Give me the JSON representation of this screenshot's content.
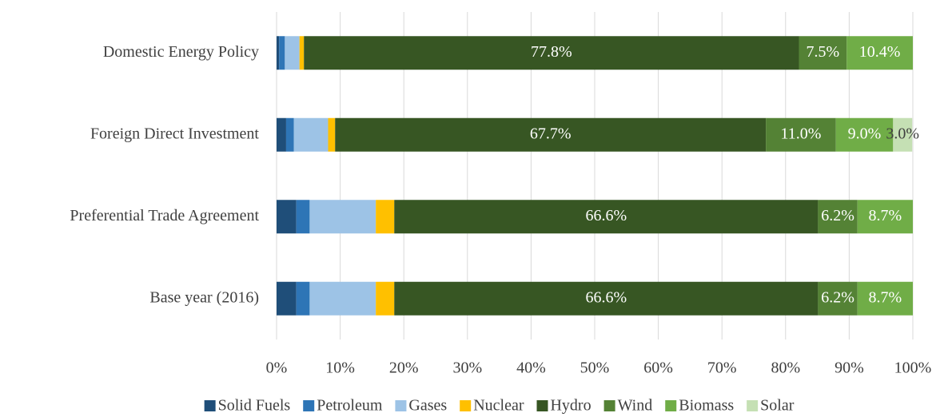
{
  "chart_data": {
    "type": "stacked_bar_horizontal",
    "categories": [
      "Domestic Energy Policy",
      "Foreign Direct Investment",
      "Preferential Trade Agreement",
      "Base year (2016)"
    ],
    "series": [
      {
        "name": "Solid Fuels",
        "color": "#1f4e79",
        "values": [
          0.4,
          1.5,
          3.1,
          3.1
        ]
      },
      {
        "name": "Petroleum",
        "color": "#2e75b6",
        "values": [
          0.9,
          1.2,
          2.1,
          2.1
        ]
      },
      {
        "name": "Gases",
        "color": "#9dc3e6",
        "values": [
          2.3,
          5.4,
          10.4,
          10.4
        ]
      },
      {
        "name": "Nuclear",
        "color": "#ffc000",
        "values": [
          0.7,
          1.1,
          2.9,
          2.9
        ]
      },
      {
        "name": "Hydro",
        "color": "#375623",
        "values": [
          77.8,
          67.7,
          66.6,
          66.6
        ],
        "value_labels": [
          "77.8%",
          "67.7%",
          "66.6%",
          "66.6%"
        ]
      },
      {
        "name": "Wind",
        "color": "#548235",
        "values": [
          7.5,
          11.0,
          6.2,
          6.2
        ],
        "value_labels": [
          "7.5%",
          "11.0%",
          "6.2%",
          "6.2%"
        ]
      },
      {
        "name": "Biomass",
        "color": "#70ad47",
        "values": [
          10.4,
          9.0,
          8.7,
          8.7
        ],
        "value_labels": [
          "10.4%",
          "9.0%",
          "8.7%",
          "8.7%"
        ]
      },
      {
        "name": "Solar",
        "color": "#c5e0b4",
        "values": [
          0,
          3.0,
          0,
          0
        ],
        "value_labels": [
          null,
          "3.0%",
          null,
          null
        ]
      }
    ],
    "xlim": [
      0,
      100
    ],
    "xticks": [
      {
        "value": 0,
        "label": "0%"
      },
      {
        "value": 10,
        "label": "10%"
      },
      {
        "value": 20,
        "label": "20%"
      },
      {
        "value": 30,
        "label": "30%"
      },
      {
        "value": 40,
        "label": "40%"
      },
      {
        "value": 50,
        "label": "50%"
      },
      {
        "value": 60,
        "label": "60%"
      },
      {
        "value": 70,
        "label": "70%"
      },
      {
        "value": 80,
        "label": "80%"
      },
      {
        "value": 90,
        "label": "90%"
      },
      {
        "value": 100,
        "label": "100%"
      }
    ],
    "grid": true,
    "legend": "bottom"
  }
}
